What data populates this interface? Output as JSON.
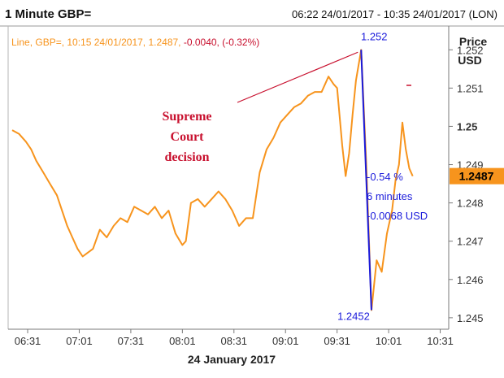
{
  "header": {
    "title": "1 Minute GBP=",
    "range": "06:22 24/01/2017 - 10:35 24/01/2017 (LON)"
  },
  "info_line": {
    "prefix": "Line, GBP=,  10:15 24/01/2017, 1.2487, ",
    "change": "-0.0040, (-0.32%)"
  },
  "axis": {
    "y_title_1": "Price",
    "y_title_2": "USD",
    "date_label": "24 January 2017",
    "last_value": "1.2487"
  },
  "annotations": {
    "event_lines": [
      "Supreme",
      "Court",
      "decision"
    ],
    "peak_label": "1.252",
    "trough_label": "1.2452",
    "move_lines": [
      "-0.54 %",
      "6 minutes",
      "-0.0068 USD"
    ]
  },
  "colors": {
    "line": "#f7941d",
    "annotation_blue": "#1a1adb",
    "annotation_red": "#c8102e",
    "last_badge": "#f7941d",
    "axis_text": "#333333"
  },
  "chart_data": {
    "type": "line",
    "title": "1 Minute GBP=",
    "ylabel": "Price USD",
    "xlabel": "24 January 2017",
    "ylim": [
      1.2447,
      1.2526
    ],
    "x_ticks": [
      "06:31",
      "07:01",
      "07:31",
      "08:01",
      "08:31",
      "09:01",
      "09:31",
      "10:01",
      "10:31"
    ],
    "y_ticks": [
      "1.245",
      "1.246",
      "1.247",
      "1.248",
      "1.249",
      "1.25",
      "1.251",
      "1.252"
    ],
    "legend": "none",
    "grid": false,
    "series": [
      {
        "x": [
          "06:22",
          "06:26",
          "06:30",
          "06:33",
          "06:36",
          "06:40",
          "06:44",
          "06:48",
          "06:51",
          "06:54",
          "06:57",
          "07:00",
          "07:03",
          "07:06",
          "07:09",
          "07:13",
          "07:17",
          "07:21",
          "07:25",
          "07:29",
          "07:33",
          "07:37",
          "07:41",
          "07:45",
          "07:49",
          "07:53",
          "07:57",
          "08:01",
          "08:03",
          "08:06",
          "08:10",
          "08:14",
          "08:18",
          "08:22",
          "08:26",
          "08:30",
          "08:34",
          "08:38",
          "08:42",
          "08:46",
          "08:50",
          "08:54",
          "08:58",
          "09:02",
          "09:06",
          "09:10",
          "09:14",
          "09:18",
          "09:22",
          "09:26",
          "09:29",
          "09:31",
          "09:34",
          "09:36",
          "09:38",
          "09:40",
          "09:42",
          "09:45",
          "09:48",
          "09:51",
          "09:54",
          "09:57",
          "10:00",
          "10:03",
          "10:05",
          "10:07",
          "10:09",
          "10:11",
          "10:13",
          "10:15"
        ],
        "values": [
          1.2499,
          1.2498,
          1.2496,
          1.2494,
          1.2491,
          1.2488,
          1.2485,
          1.2482,
          1.2478,
          1.2474,
          1.2471,
          1.2468,
          1.2466,
          1.2467,
          1.2468,
          1.2473,
          1.2471,
          1.2474,
          1.2476,
          1.2475,
          1.2479,
          1.2478,
          1.2477,
          1.2479,
          1.2476,
          1.2478,
          1.2472,
          1.2469,
          1.247,
          1.248,
          1.2481,
          1.2479,
          1.2481,
          1.2483,
          1.2481,
          1.2478,
          1.2474,
          1.2476,
          1.2476,
          1.2488,
          1.2494,
          1.2497,
          1.2501,
          1.2503,
          1.2505,
          1.2506,
          1.2508,
          1.2509,
          1.2509,
          1.2513,
          1.2511,
          1.251,
          1.2495,
          1.2487,
          1.2493,
          1.2503,
          1.2512,
          1.252,
          1.249,
          1.2452,
          1.2465,
          1.2462,
          1.2472,
          1.2478,
          1.2486,
          1.249,
          1.2501,
          1.2494,
          1.2489,
          1.2487
        ]
      }
    ]
  }
}
